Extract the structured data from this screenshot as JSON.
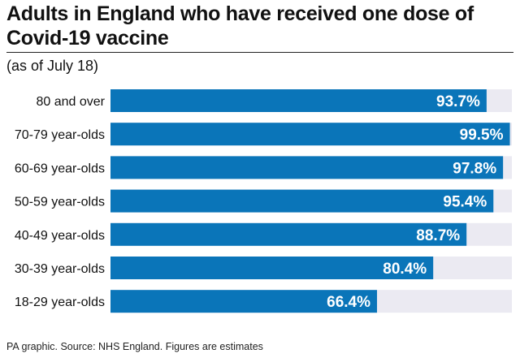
{
  "header": {
    "title": "Adults in England who have received one dose of Covid-19 vaccine",
    "subtitle": "(as of July 18)"
  },
  "footer": {
    "source": "PA graphic. Source: NHS England. Figures are estimates"
  },
  "colors": {
    "bar": "#0a75b9",
    "track": "#ebeaf2",
    "text": "#111111"
  },
  "chart_data": {
    "type": "bar",
    "orientation": "horizontal",
    "title": "Adults in England who have received one dose of Covid-19 vaccine",
    "subtitle": "(as of July 18)",
    "categories": [
      "80 and over",
      "70-79 year-olds",
      "60-69 year-olds",
      "50-59 year-olds",
      "40-49 year-olds",
      "30-39 year-olds",
      "18-29 year-olds"
    ],
    "values": [
      93.7,
      99.5,
      97.8,
      95.4,
      88.7,
      80.4,
      66.4
    ],
    "value_labels": [
      "93.7%",
      "99.5%",
      "97.8%",
      "95.4%",
      "88.7%",
      "80.4%",
      "66.4%"
    ],
    "xlim": [
      0,
      100
    ],
    "grid": false,
    "legend": "none"
  }
}
